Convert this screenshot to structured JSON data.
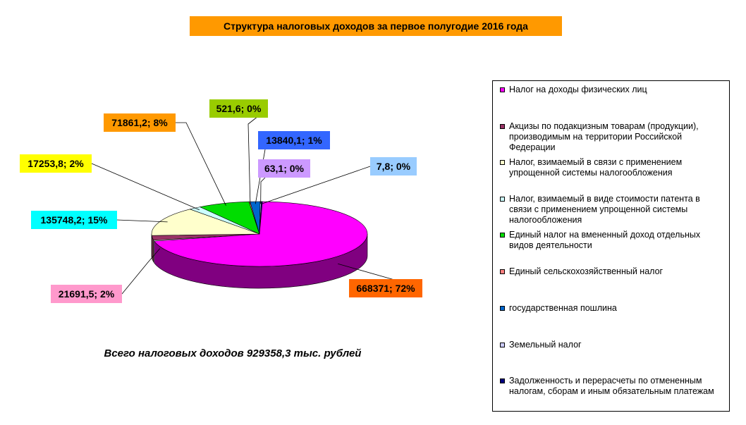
{
  "title": "Структура налоговых доходов за первое полугодие 2016 года",
  "caption": "Всего налоговых доходов 929358,3 тыс. рублей",
  "chart_data": {
    "type": "pie",
    "title": "Структура налоговых доходов за первое полугодие 2016 года",
    "total_label": "Всего налоговых доходов 929358,3 тыс. рублей",
    "legend_position": "right",
    "slices": [
      {
        "name": "Налог на доходы физических лиц",
        "value": 668371,
        "percent": 72,
        "label": "668371; 72%",
        "color": "#FF00FF",
        "side_color": "#800080",
        "label_bg": "#FF6600"
      },
      {
        "name": "Акцизы по подакцизным товарам (продукции), производимым на территории Российской Федерации",
        "value": 21691.5,
        "percent": 2,
        "label": "21691,5; 2%",
        "color": "#993366",
        "side_color": "#663344",
        "label_bg": "#FF99CC"
      },
      {
        "name": "Налог, взимаемый в связи с применением упрощенной системы налогообложения",
        "value": 135748.2,
        "percent": 15,
        "label": "135748,2; 15%",
        "color": "#FFFFCC",
        "side_color": "#CCCC99",
        "label_bg": "#00FFFF"
      },
      {
        "name": "Налог, взимаемый в виде стоимости патента в связи с применением упрощенной системы налогообложения",
        "value": 17253.8,
        "percent": 2,
        "label": "17253,8; 2%",
        "color": "#CCFFFF",
        "side_color": "#99CCCC",
        "label_bg": "#FFFF00"
      },
      {
        "name": "Единый налог на вмененный доход отдельных видов деятельности",
        "value": 71861.2,
        "percent": 8,
        "label": "71861,2; 8%",
        "color": "#00DD00",
        "side_color": "#008000",
        "label_bg": "#FF9900"
      },
      {
        "name": "Единый сельскохозяйственный налог",
        "value": 521.6,
        "percent": 0,
        "label": "521,6; 0%",
        "color": "#FF8080",
        "side_color": "#CC6666",
        "label_bg": "#99CC00"
      },
      {
        "name": "государственная пошлина",
        "value": 13840.1,
        "percent": 1,
        "label": "13840,1; 1%",
        "color": "#0066CC",
        "side_color": "#003366",
        "label_bg": "#3366FF"
      },
      {
        "name": "Земельный налог",
        "value": 63.1,
        "percent": 0,
        "label": "63,1; 0%",
        "color": "#CCCCFF",
        "side_color": "#9999CC",
        "label_bg": "#CC99FF"
      },
      {
        "name": "Задолженность и перерасчеты по отмененным налогам, сборам и иным обязательным платежам",
        "value": 7.8,
        "percent": 0,
        "label": "7,8; 0%",
        "color": "#000080",
        "side_color": "#000040",
        "label_bg": "#99CCFF"
      }
    ]
  }
}
